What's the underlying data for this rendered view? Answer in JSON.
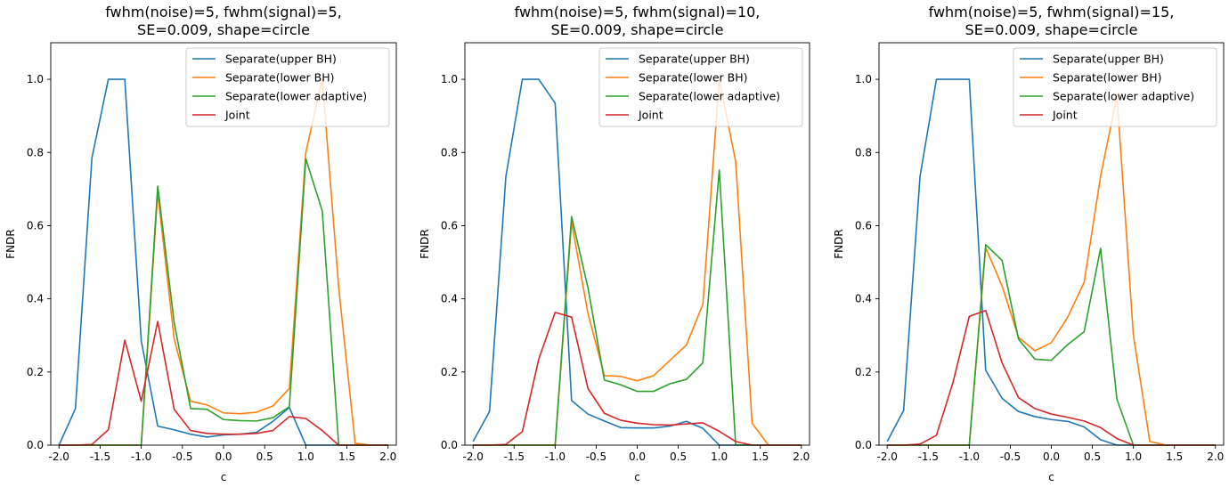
{
  "colors": {
    "upper_bh": "#1f77b4",
    "lower_bh": "#ff7f0e",
    "lower_adaptive": "#2ca02c",
    "joint": "#d62728"
  },
  "chart_data": [
    {
      "type": "line",
      "title_line1": "fwhm(noise)=5, fwhm(signal)=5,",
      "title_line2": "SE=0.009, shape=circle",
      "xlabel": "c",
      "ylabel": "FNDR",
      "xlim": [
        -2.1,
        2.1
      ],
      "ylim": [
        0,
        1.1
      ],
      "xticks": [
        -2.0,
        -1.5,
        -1.0,
        -0.5,
        0.0,
        0.5,
        1.0,
        1.5,
        2.0
      ],
      "yticks": [
        0.0,
        0.2,
        0.4,
        0.6,
        0.8,
        1.0
      ],
      "legend_position": "upper-right",
      "grid": false,
      "x": [
        -2.0,
        -1.8,
        -1.6,
        -1.4,
        -1.2,
        -1.0,
        -0.8,
        -0.6,
        -0.4,
        -0.2,
        0.0,
        0.2,
        0.4,
        0.6,
        0.8,
        1.0,
        1.2,
        1.4,
        1.6,
        1.8,
        2.0
      ],
      "series": [
        {
          "name": "Separate(upper BH)",
          "color": "#1f77b4",
          "values": [
            0.0,
            0.1,
            0.785,
            1.0,
            1.0,
            0.285,
            0.052,
            0.042,
            0.03,
            0.022,
            0.028,
            0.03,
            0.035,
            0.065,
            0.103,
            0.0,
            0.0,
            0.0,
            0.0,
            0.0,
            0.0
          ]
        },
        {
          "name": "Separate(lower BH)",
          "color": "#ff7f0e",
          "values": [
            0.0,
            0.0,
            0.0,
            0.0,
            0.0,
            0.0,
            0.69,
            0.29,
            0.12,
            0.11,
            0.088,
            0.086,
            0.09,
            0.107,
            0.155,
            0.8,
            1.0,
            0.43,
            0.005,
            0.0,
            0.0
          ]
        },
        {
          "name": "Separate(lower adaptive)",
          "color": "#2ca02c",
          "values": [
            0.0,
            0.0,
            0.0,
            0.0,
            0.0,
            0.0,
            0.708,
            0.335,
            0.1,
            0.098,
            0.07,
            0.067,
            0.066,
            0.075,
            0.105,
            0.783,
            0.64,
            0.0,
            0.0,
            0.0,
            0.0
          ]
        },
        {
          "name": "Joint",
          "color": "#d62728",
          "values": [
            0.0,
            0.0,
            0.002,
            0.042,
            0.287,
            0.12,
            0.338,
            0.098,
            0.04,
            0.032,
            0.03,
            0.03,
            0.032,
            0.04,
            0.078,
            0.073,
            0.04,
            0.0,
            0.0,
            0.0,
            0.0
          ]
        }
      ]
    },
    {
      "type": "line",
      "title_line1": "fwhm(noise)=5, fwhm(signal)=10,",
      "title_line2": "SE=0.009, shape=circle",
      "xlabel": "c",
      "ylabel": "FNDR",
      "xlim": [
        -2.1,
        2.1
      ],
      "ylim": [
        0,
        1.1
      ],
      "xticks": [
        -2.0,
        -1.5,
        -1.0,
        -0.5,
        0.0,
        0.5,
        1.0,
        1.5,
        2.0
      ],
      "yticks": [
        0.0,
        0.2,
        0.4,
        0.6,
        0.8,
        1.0
      ],
      "legend_position": "upper-right",
      "grid": false,
      "x": [
        -2.0,
        -1.8,
        -1.6,
        -1.4,
        -1.2,
        -1.0,
        -0.8,
        -0.6,
        -0.4,
        -0.2,
        0.0,
        0.2,
        0.4,
        0.6,
        0.8,
        1.0,
        1.2,
        1.4,
        1.6,
        1.8,
        2.0
      ],
      "series": [
        {
          "name": "Separate(upper BH)",
          "color": "#1f77b4",
          "values": [
            0.01,
            0.092,
            0.735,
            1.0,
            1.0,
            0.935,
            0.122,
            0.085,
            0.066,
            0.048,
            0.047,
            0.047,
            0.052,
            0.065,
            0.046,
            0.0,
            0.0,
            0.0,
            0.0,
            0.0,
            0.0
          ]
        },
        {
          "name": "Separate(lower BH)",
          "color": "#ff7f0e",
          "values": [
            0.0,
            0.0,
            0.0,
            0.0,
            0.0,
            0.0,
            0.61,
            0.36,
            0.19,
            0.188,
            0.176,
            0.19,
            0.232,
            0.274,
            0.385,
            1.0,
            0.775,
            0.06,
            0.0,
            0.0,
            0.0
          ]
        },
        {
          "name": "Separate(lower adaptive)",
          "color": "#2ca02c",
          "values": [
            0.0,
            0.0,
            0.0,
            0.0,
            0.0,
            0.0,
            0.625,
            0.43,
            0.178,
            0.165,
            0.147,
            0.147,
            0.168,
            0.18,
            0.225,
            0.752,
            0.0,
            0.0,
            0.0,
            0.0,
            0.0
          ]
        },
        {
          "name": "Joint",
          "color": "#d62728",
          "values": [
            0.0,
            0.0,
            0.002,
            0.037,
            0.235,
            0.363,
            0.35,
            0.155,
            0.087,
            0.068,
            0.06,
            0.056,
            0.055,
            0.058,
            0.061,
            0.038,
            0.01,
            0.0,
            0.0,
            0.0,
            0.0
          ]
        }
      ]
    },
    {
      "type": "line",
      "title_line1": "fwhm(noise)=5, fwhm(signal)=15,",
      "title_line2": "SE=0.009, shape=circle",
      "xlabel": "c",
      "ylabel": "FNDR",
      "xlim": [
        -2.1,
        2.1
      ],
      "ylim": [
        0,
        1.1
      ],
      "xticks": [
        -2.0,
        -1.5,
        -1.0,
        -0.5,
        0.0,
        0.5,
        1.0,
        1.5,
        2.0
      ],
      "yticks": [
        0.0,
        0.2,
        0.4,
        0.6,
        0.8,
        1.0
      ],
      "legend_position": "upper-right",
      "grid": false,
      "x": [
        -2.0,
        -1.8,
        -1.6,
        -1.4,
        -1.2,
        -1.0,
        -0.8,
        -0.6,
        -0.4,
        -0.2,
        0.0,
        0.2,
        0.4,
        0.6,
        0.8,
        1.0,
        1.2,
        1.4,
        1.6,
        1.8,
        2.0
      ],
      "series": [
        {
          "name": "Separate(upper BH)",
          "color": "#1f77b4",
          "values": [
            0.01,
            0.095,
            0.735,
            1.0,
            1.0,
            1.0,
            0.205,
            0.128,
            0.092,
            0.078,
            0.07,
            0.065,
            0.05,
            0.015,
            0.0,
            0.0,
            0.0,
            0.0,
            0.0,
            0.0,
            0.0
          ]
        },
        {
          "name": "Separate(lower BH)",
          "color": "#ff7f0e",
          "values": [
            0.0,
            0.0,
            0.0,
            0.0,
            0.0,
            0.0,
            0.54,
            0.435,
            0.295,
            0.258,
            0.28,
            0.35,
            0.445,
            0.735,
            0.955,
            0.3,
            0.01,
            0.0,
            0.0,
            0.0,
            0.0
          ]
        },
        {
          "name": "Separate(lower adaptive)",
          "color": "#2ca02c",
          "values": [
            0.0,
            0.0,
            0.0,
            0.0,
            0.0,
            0.0,
            0.548,
            0.505,
            0.29,
            0.235,
            0.232,
            0.275,
            0.31,
            0.538,
            0.125,
            0.0,
            0.0,
            0.0,
            0.0,
            0.0,
            0.0
          ]
        },
        {
          "name": "Joint",
          "color": "#d62728",
          "values": [
            0.0,
            0.0,
            0.003,
            0.027,
            0.17,
            0.352,
            0.368,
            0.225,
            0.13,
            0.1,
            0.085,
            0.076,
            0.066,
            0.048,
            0.018,
            0.0,
            0.0,
            0.0,
            0.0,
            0.0,
            0.0
          ]
        }
      ]
    }
  ]
}
